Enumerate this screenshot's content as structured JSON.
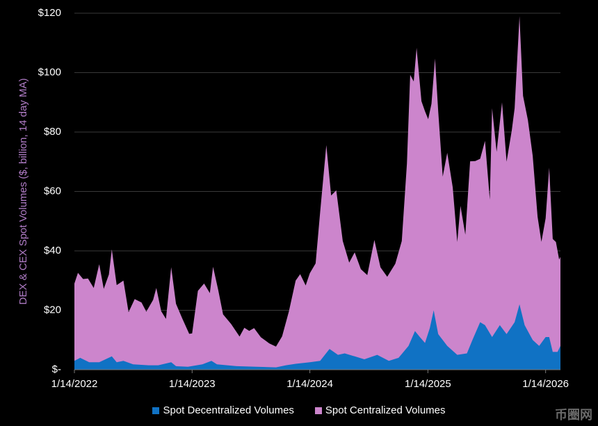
{
  "chart_data": {
    "type": "area",
    "stacked": true,
    "title": "",
    "ylabel": "DEX & CEX Spot Volumes ($, billion, 14 day MA)",
    "ylabel_color": "#b07cc6",
    "ylim": [
      0,
      120
    ],
    "yticks": [
      0,
      20,
      40,
      60,
      80,
      100,
      120
    ],
    "ytick_labels": [
      "$-",
      "$20",
      "$40",
      "$60",
      "$80",
      "$100",
      "$120"
    ],
    "xlim": [
      "2022-01-14",
      "2026-03-01"
    ],
    "xticks": [
      "2022-01-14",
      "2023-01-14",
      "2024-01-14",
      "2025-01-14",
      "2026-01-14"
    ],
    "xtick_labels": [
      "1/14/2022",
      "1/14/2023",
      "1/14/2024",
      "1/14/2025",
      "1/14/2026"
    ],
    "grid": "horizontal",
    "legend_position": "bottom",
    "series": [
      {
        "name": "Spot Decentralized Volumes",
        "color": "#1072c4",
        "points": [
          [
            "2022-01-14",
            3
          ],
          [
            "2022-02-01",
            4
          ],
          [
            "2022-03-01",
            2.5
          ],
          [
            "2022-04-01",
            2.5
          ],
          [
            "2022-05-10",
            4.5
          ],
          [
            "2022-05-25",
            2.5
          ],
          [
            "2022-06-15",
            3
          ],
          [
            "2022-07-15",
            1.8
          ],
          [
            "2022-09-01",
            1.5
          ],
          [
            "2022-10-01",
            1.5
          ],
          [
            "2022-11-10",
            2.5
          ],
          [
            "2022-11-25",
            1.2
          ],
          [
            "2023-01-01",
            1
          ],
          [
            "2023-02-15",
            1.8
          ],
          [
            "2023-03-15",
            3
          ],
          [
            "2023-04-01",
            1.8
          ],
          [
            "2023-06-01",
            1.2
          ],
          [
            "2023-08-01",
            1
          ],
          [
            "2023-10-01",
            0.8
          ],
          [
            "2023-11-01",
            1.5
          ],
          [
            "2023-12-01",
            2
          ],
          [
            "2024-01-14",
            2.5
          ],
          [
            "2024-02-15",
            3
          ],
          [
            "2024-03-15",
            7
          ],
          [
            "2024-04-10",
            5
          ],
          [
            "2024-05-01",
            5.5
          ],
          [
            "2024-06-01",
            4.5
          ],
          [
            "2024-07-01",
            3.5
          ],
          [
            "2024-08-10",
            5
          ],
          [
            "2024-09-15",
            3
          ],
          [
            "2024-10-15",
            4
          ],
          [
            "2024-11-15",
            8
          ],
          [
            "2024-12-05",
            13
          ],
          [
            "2024-12-20",
            11
          ],
          [
            "2025-01-05",
            9
          ],
          [
            "2025-01-20",
            14
          ],
          [
            "2025-02-01",
            20
          ],
          [
            "2025-02-15",
            12
          ],
          [
            "2025-03-15",
            8
          ],
          [
            "2025-04-15",
            5
          ],
          [
            "2025-05-15",
            5.5
          ],
          [
            "2025-06-01",
            10
          ],
          [
            "2025-06-25",
            16
          ],
          [
            "2025-07-10",
            15
          ],
          [
            "2025-08-01",
            11
          ],
          [
            "2025-08-25",
            15
          ],
          [
            "2025-09-15",
            12
          ],
          [
            "2025-10-10",
            16
          ],
          [
            "2025-10-25",
            22
          ],
          [
            "2025-11-10",
            15
          ],
          [
            "2025-12-05",
            10
          ],
          [
            "2025-12-25",
            8
          ],
          [
            "2026-01-14",
            11
          ],
          [
            "2026-01-25",
            11
          ],
          [
            "2026-02-05",
            6
          ],
          [
            "2026-02-20",
            6
          ],
          [
            "2026-03-01",
            8
          ]
        ]
      },
      {
        "name": "Spot Centralized Volumes",
        "color": "#cc85cc",
        "points": [
          [
            "2022-01-14",
            26
          ],
          [
            "2022-01-25",
            29
          ],
          [
            "2022-02-10",
            27
          ],
          [
            "2022-02-25",
            28
          ],
          [
            "2022-03-15",
            25
          ],
          [
            "2022-04-01",
            33
          ],
          [
            "2022-04-15",
            24
          ],
          [
            "2022-05-01",
            28
          ],
          [
            "2022-05-10",
            36
          ],
          [
            "2022-05-25",
            26
          ],
          [
            "2022-06-15",
            27
          ],
          [
            "2022-07-01",
            17
          ],
          [
            "2022-07-20",
            22
          ],
          [
            "2022-08-10",
            21
          ],
          [
            "2022-08-25",
            18
          ],
          [
            "2022-09-15",
            22
          ],
          [
            "2022-09-25",
            26
          ],
          [
            "2022-10-10",
            18
          ],
          [
            "2022-10-25",
            15
          ],
          [
            "2022-11-10",
            32
          ],
          [
            "2022-11-25",
            21
          ],
          [
            "2022-12-15",
            16
          ],
          [
            "2023-01-05",
            11
          ],
          [
            "2023-01-14",
            11
          ],
          [
            "2023-02-01",
            25
          ],
          [
            "2023-02-20",
            27
          ],
          [
            "2023-03-10",
            23
          ],
          [
            "2023-03-20",
            32
          ],
          [
            "2023-04-05",
            25
          ],
          [
            "2023-04-20",
            17
          ],
          [
            "2023-05-15",
            14
          ],
          [
            "2023-06-10",
            10
          ],
          [
            "2023-06-25",
            13
          ],
          [
            "2023-07-10",
            12
          ],
          [
            "2023-07-25",
            13
          ],
          [
            "2023-08-15",
            10
          ],
          [
            "2023-09-10",
            8
          ],
          [
            "2023-10-01",
            7
          ],
          [
            "2023-10-20",
            10
          ],
          [
            "2023-11-10",
            18
          ],
          [
            "2023-12-01",
            28
          ],
          [
            "2023-12-15",
            30
          ],
          [
            "2024-01-01",
            26
          ],
          [
            "2024-01-14",
            30
          ],
          [
            "2024-02-01",
            33
          ],
          [
            "2024-02-15",
            50
          ],
          [
            "2024-03-05",
            70
          ],
          [
            "2024-03-20",
            52
          ],
          [
            "2024-04-05",
            55
          ],
          [
            "2024-04-25",
            38
          ],
          [
            "2024-05-15",
            31
          ],
          [
            "2024-06-01",
            35
          ],
          [
            "2024-06-20",
            30
          ],
          [
            "2024-07-10",
            28
          ],
          [
            "2024-08-01",
            39
          ],
          [
            "2024-08-20",
            30
          ],
          [
            "2024-09-10",
            28
          ],
          [
            "2024-10-05",
            32
          ],
          [
            "2024-10-25",
            38
          ],
          [
            "2024-11-10",
            62
          ],
          [
            "2024-11-20",
            90
          ],
          [
            "2024-12-01",
            85
          ],
          [
            "2024-12-10",
            96
          ],
          [
            "2024-12-25",
            80
          ],
          [
            "2025-01-05",
            78
          ],
          [
            "2025-01-15",
            72
          ],
          [
            "2025-01-25",
            73
          ],
          [
            "2025-02-05",
            87
          ],
          [
            "2025-02-15",
            75
          ],
          [
            "2025-03-01",
            55
          ],
          [
            "2025-03-15",
            65
          ],
          [
            "2025-04-01",
            55
          ],
          [
            "2025-04-15",
            38
          ],
          [
            "2025-04-25",
            50
          ],
          [
            "2025-05-10",
            40
          ],
          [
            "2025-05-25",
            62
          ],
          [
            "2025-06-10",
            58
          ],
          [
            "2025-06-25",
            55
          ],
          [
            "2025-07-10",
            62
          ],
          [
            "2025-07-25",
            45
          ],
          [
            "2025-08-01",
            77
          ],
          [
            "2025-08-15",
            60
          ],
          [
            "2025-09-01",
            76
          ],
          [
            "2025-09-15",
            58
          ],
          [
            "2025-10-01",
            66
          ],
          [
            "2025-10-10",
            72
          ],
          [
            "2025-10-25",
            97
          ],
          [
            "2025-11-05",
            75
          ],
          [
            "2025-11-20",
            71
          ],
          [
            "2025-12-05",
            62
          ],
          [
            "2025-12-20",
            43
          ],
          [
            "2026-01-01",
            34
          ],
          [
            "2026-01-14",
            40
          ],
          [
            "2026-01-25",
            57
          ],
          [
            "2026-02-05",
            38
          ],
          [
            "2026-02-15",
            37
          ],
          [
            "2026-02-25",
            30
          ],
          [
            "2026-03-01",
            30
          ]
        ]
      }
    ]
  },
  "legend": {
    "dex_label": "Spot Decentralized Volumes",
    "cex_label": "Spot Centralized Volumes"
  },
  "watermark_text": "币圈网"
}
